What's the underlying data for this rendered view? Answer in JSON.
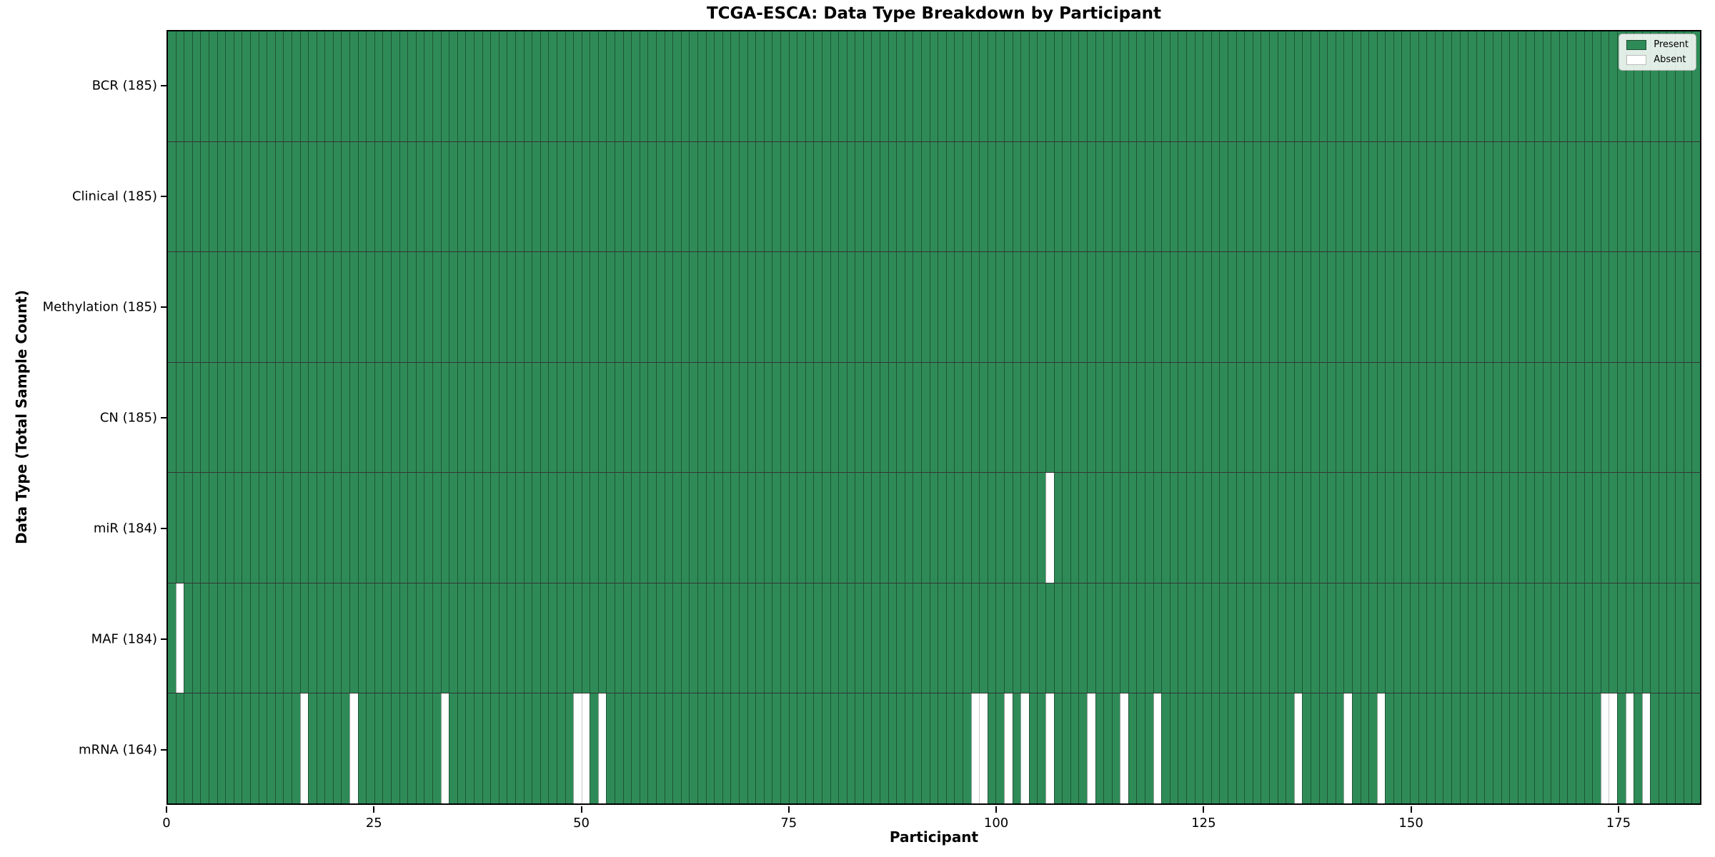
{
  "chart_data": {
    "type": "heatmap",
    "title": "TCGA-ESCA: Data Type Breakdown by Participant",
    "xlabel": "Participant",
    "ylabel": "Data Type (Total Sample Count)",
    "n_participants": 185,
    "x_ticks": [
      0,
      25,
      50,
      75,
      100,
      125,
      150,
      175
    ],
    "xlim": [
      0,
      185
    ],
    "grid": false,
    "legend_position": "upper right",
    "colors": {
      "present": "#2e8b57",
      "absent": "#ffffff"
    },
    "legend": [
      {
        "label": "Present",
        "state": "present"
      },
      {
        "label": "Absent",
        "state": "absent"
      }
    ],
    "rows": [
      {
        "label": "BCR (185)",
        "data_type": "BCR",
        "total_sample_count": 185,
        "absent_participants": []
      },
      {
        "label": "Clinical (185)",
        "data_type": "Clinical",
        "total_sample_count": 185,
        "absent_participants": []
      },
      {
        "label": "Methylation (185)",
        "data_type": "Methylation",
        "total_sample_count": 185,
        "absent_participants": []
      },
      {
        "label": "CN (185)",
        "data_type": "CN",
        "total_sample_count": 185,
        "absent_participants": []
      },
      {
        "label": "miR (184)",
        "data_type": "miR",
        "total_sample_count": 184,
        "absent_participants": [
          106
        ]
      },
      {
        "label": "MAF (184)",
        "data_type": "MAF",
        "total_sample_count": 184,
        "absent_participants": [
          1
        ]
      },
      {
        "label": "mRNA (164)",
        "data_type": "mRNA",
        "total_sample_count": 164,
        "absent_participants": [
          16,
          22,
          33,
          49,
          50,
          52,
          97,
          98,
          101,
          103,
          106,
          111,
          115,
          119,
          136,
          142,
          146,
          173,
          174,
          176,
          178
        ]
      }
    ]
  }
}
